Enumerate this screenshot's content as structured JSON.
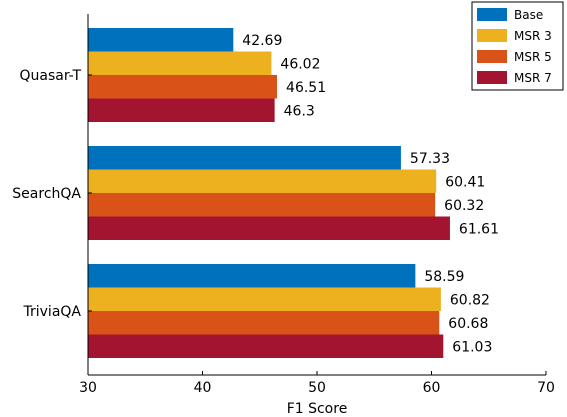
{
  "chart_data": {
    "type": "bar",
    "orientation": "horizontal",
    "title": "",
    "xlabel": "F1 Score",
    "ylabel": "",
    "xlim": [
      30,
      70
    ],
    "xticks": [
      30,
      40,
      50,
      60,
      70
    ],
    "categories": [
      "Quasar-T",
      "SearchQA",
      "TriviaQA"
    ],
    "series": [
      {
        "name": "Base",
        "color": "#0072BD",
        "values": [
          42.69,
          57.33,
          58.59
        ],
        "labels": [
          "42.69",
          "57.33",
          "58.59"
        ]
      },
      {
        "name": "MSR 3",
        "color": "#EDB120",
        "values": [
          46.02,
          60.41,
          60.82
        ],
        "labels": [
          "46.02",
          "60.41",
          "60.82"
        ]
      },
      {
        "name": "MSR 5",
        "color": "#D95319",
        "values": [
          46.51,
          60.32,
          60.68
        ],
        "labels": [
          "46.51",
          "60.32",
          "60.68"
        ]
      },
      {
        "name": "MSR 7",
        "color": "#A2142F",
        "values": [
          46.3,
          61.61,
          61.03
        ],
        "labels": [
          "46.30",
          "61.61",
          "61.03"
        ]
      }
    ],
    "grid": false,
    "legend_position": "top-right"
  }
}
